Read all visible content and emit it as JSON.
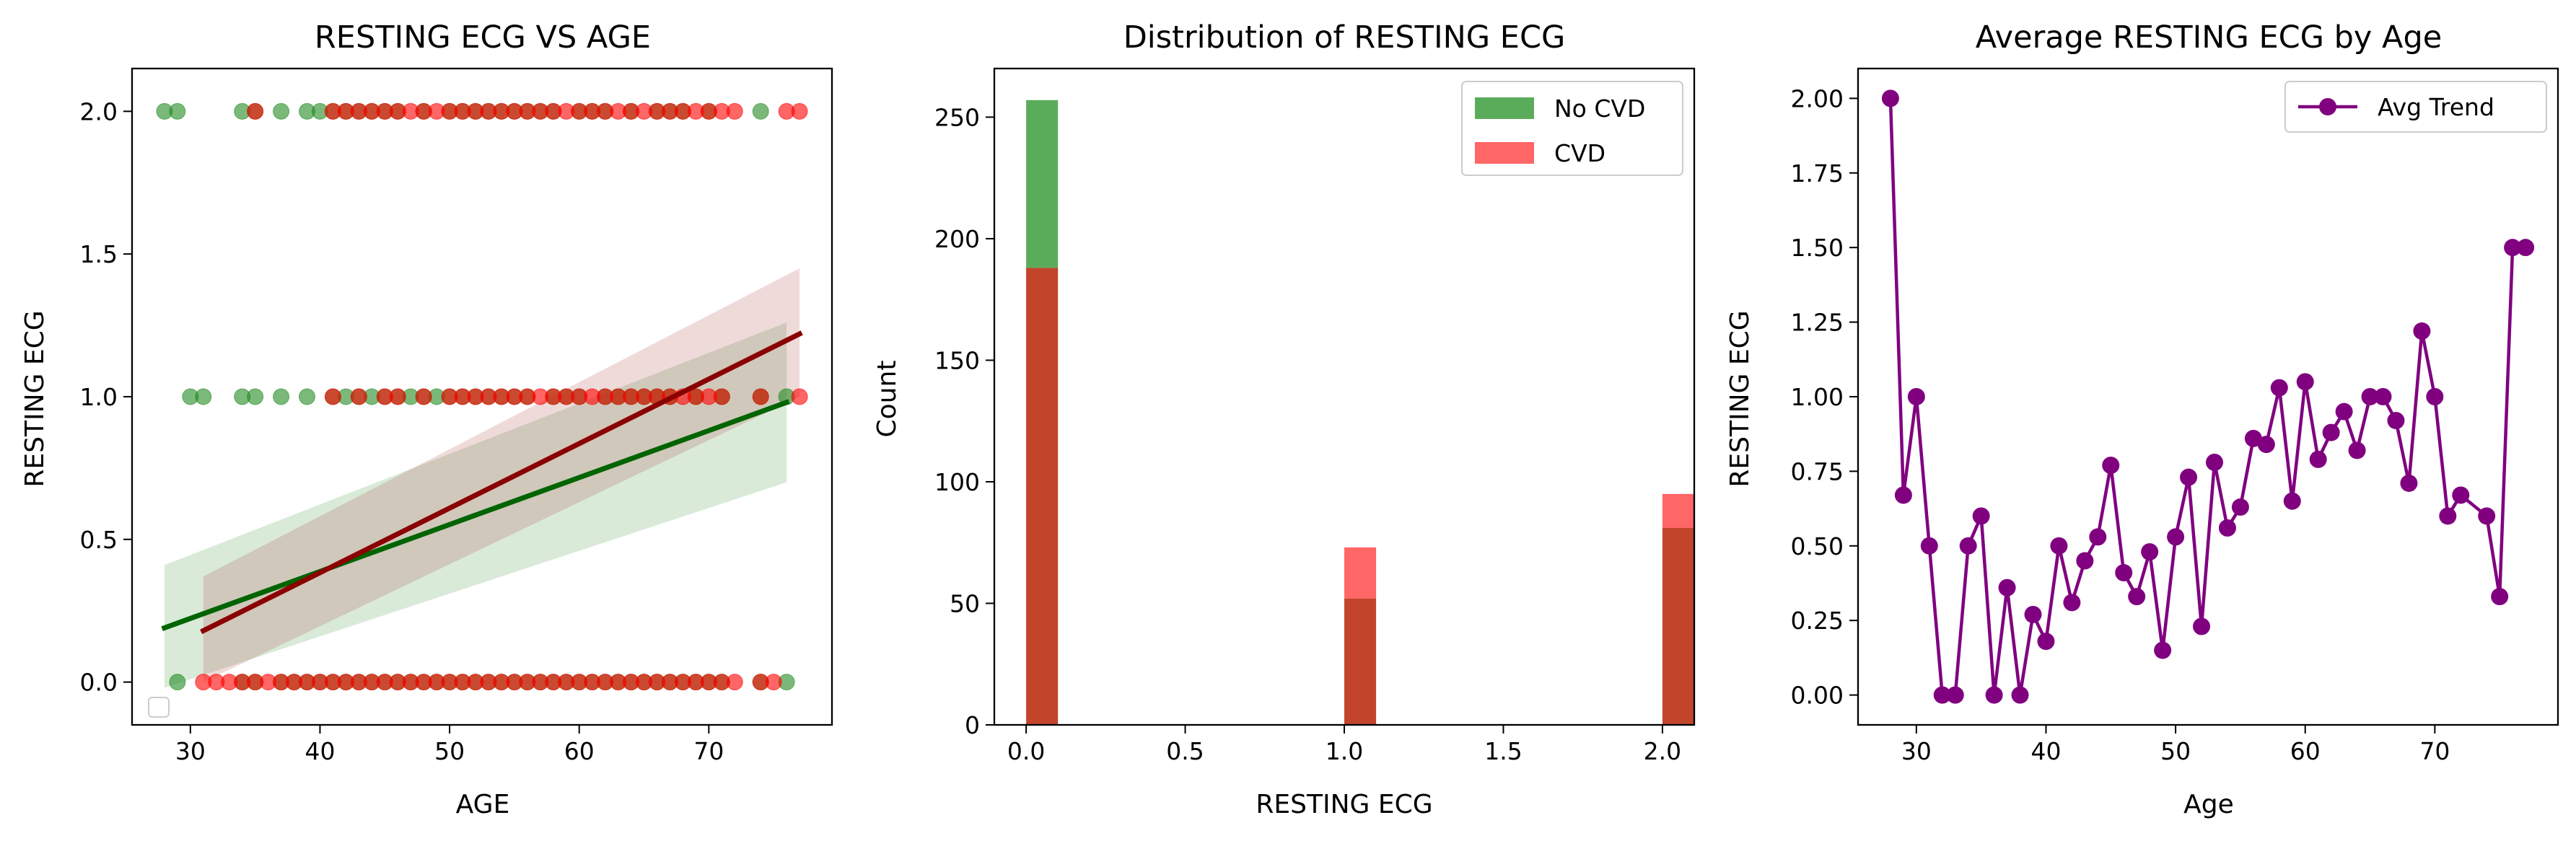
{
  "chart_data": [
    {
      "type": "scatter",
      "title": "RESTING ECG VS AGE",
      "xlabel": "AGE",
      "ylabel": "RESTING ECG",
      "xlim": [
        25.5,
        79.5
      ],
      "ylim": [
        -0.15,
        2.15
      ],
      "xticks": [
        30,
        40,
        50,
        60,
        70
      ],
      "yticks": [
        0.0,
        0.5,
        1.0,
        1.5,
        2.0
      ],
      "legend": "bottom-left (empty)",
      "colors": {
        "no_cvd": "#228b22",
        "cvd": "#ff0000",
        "no_cvd_fit": "#006400",
        "cvd_fit": "#8b0000"
      },
      "series": [
        {
          "group": "No CVD",
          "points": [
            [
              28,
              2
            ],
            [
              29,
              2
            ],
            [
              34,
              2
            ],
            [
              35,
              2
            ],
            [
              37,
              2
            ],
            [
              39,
              2
            ],
            [
              40,
              2
            ],
            [
              41,
              2
            ],
            [
              42,
              2
            ],
            [
              43,
              2
            ],
            [
              44,
              2
            ],
            [
              45,
              2
            ],
            [
              46,
              2
            ],
            [
              48,
              2
            ],
            [
              50,
              2
            ],
            [
              51,
              2
            ],
            [
              52,
              2
            ],
            [
              53,
              2
            ],
            [
              54,
              2
            ],
            [
              55,
              2
            ],
            [
              56,
              2
            ],
            [
              57,
              2
            ],
            [
              58,
              2
            ],
            [
              60,
              2
            ],
            [
              61,
              2
            ],
            [
              62,
              2
            ],
            [
              64,
              2
            ],
            [
              66,
              2
            ],
            [
              67,
              2
            ],
            [
              68,
              2
            ],
            [
              70,
              2
            ],
            [
              74,
              2
            ],
            [
              30,
              1
            ],
            [
              31,
              1
            ],
            [
              34,
              1
            ],
            [
              35,
              1
            ],
            [
              37,
              1
            ],
            [
              39,
              1
            ],
            [
              41,
              1
            ],
            [
              42,
              1
            ],
            [
              43,
              1
            ],
            [
              44,
              1
            ],
            [
              45,
              1
            ],
            [
              46,
              1
            ],
            [
              47,
              1
            ],
            [
              48,
              1
            ],
            [
              49,
              1
            ],
            [
              50,
              1
            ],
            [
              51,
              1
            ],
            [
              52,
              1
            ],
            [
              53,
              1
            ],
            [
              54,
              1
            ],
            [
              55,
              1
            ],
            [
              56,
              1
            ],
            [
              58,
              1
            ],
            [
              59,
              1
            ],
            [
              60,
              1
            ],
            [
              62,
              1
            ],
            [
              63,
              1
            ],
            [
              64,
              1
            ],
            [
              65,
              1
            ],
            [
              66,
              1
            ],
            [
              67,
              1
            ],
            [
              69,
              1
            ],
            [
              71,
              1
            ],
            [
              74,
              1
            ],
            [
              76,
              1
            ],
            [
              29,
              0
            ],
            [
              34,
              0
            ],
            [
              35,
              0
            ],
            [
              37,
              0
            ],
            [
              38,
              0
            ],
            [
              39,
              0
            ],
            [
              40,
              0
            ],
            [
              41,
              0
            ],
            [
              42,
              0
            ],
            [
              43,
              0
            ],
            [
              44,
              0
            ],
            [
              45,
              0
            ],
            [
              46,
              0
            ],
            [
              47,
              0
            ],
            [
              48,
              0
            ],
            [
              49,
              0
            ],
            [
              50,
              0
            ],
            [
              51,
              0
            ],
            [
              52,
              0
            ],
            [
              53,
              0
            ],
            [
              54,
              0
            ],
            [
              55,
              0
            ],
            [
              56,
              0
            ],
            [
              57,
              0
            ],
            [
              58,
              0
            ],
            [
              59,
              0
            ],
            [
              60,
              0
            ],
            [
              61,
              0
            ],
            [
              62,
              0
            ],
            [
              63,
              0
            ],
            [
              64,
              0
            ],
            [
              65,
              0
            ],
            [
              66,
              0
            ],
            [
              67,
              0
            ],
            [
              68,
              0
            ],
            [
              69,
              0
            ],
            [
              70,
              0
            ],
            [
              71,
              0
            ],
            [
              74,
              0
            ],
            [
              76,
              0
            ]
          ],
          "fit": {
            "x": [
              28,
              76
            ],
            "y": [
              0.19,
              0.98
            ],
            "ci_low": [
              -0.02,
              0.7
            ],
            "ci_high": [
              0.41,
              1.26
            ]
          }
        },
        {
          "group": "CVD",
          "points": [
            [
              35,
              2
            ],
            [
              41,
              2
            ],
            [
              42,
              2
            ],
            [
              43,
              2
            ],
            [
              44,
              2
            ],
            [
              45,
              2
            ],
            [
              46,
              2
            ],
            [
              47,
              2
            ],
            [
              48,
              2
            ],
            [
              49,
              2
            ],
            [
              50,
              2
            ],
            [
              51,
              2
            ],
            [
              52,
              2
            ],
            [
              53,
              2
            ],
            [
              54,
              2
            ],
            [
              55,
              2
            ],
            [
              56,
              2
            ],
            [
              57,
              2
            ],
            [
              58,
              2
            ],
            [
              59,
              2
            ],
            [
              60,
              2
            ],
            [
              61,
              2
            ],
            [
              62,
              2
            ],
            [
              63,
              2
            ],
            [
              64,
              2
            ],
            [
              65,
              2
            ],
            [
              66,
              2
            ],
            [
              67,
              2
            ],
            [
              68,
              2
            ],
            [
              69,
              2
            ],
            [
              70,
              2
            ],
            [
              71,
              2
            ],
            [
              72,
              2
            ],
            [
              76,
              2
            ],
            [
              77,
              2
            ],
            [
              41,
              1
            ],
            [
              43,
              1
            ],
            [
              45,
              1
            ],
            [
              46,
              1
            ],
            [
              48,
              1
            ],
            [
              50,
              1
            ],
            [
              51,
              1
            ],
            [
              52,
              1
            ],
            [
              53,
              1
            ],
            [
              54,
              1
            ],
            [
              55,
              1
            ],
            [
              56,
              1
            ],
            [
              57,
              1
            ],
            [
              58,
              1
            ],
            [
              59,
              1
            ],
            [
              60,
              1
            ],
            [
              61,
              1
            ],
            [
              62,
              1
            ],
            [
              63,
              1
            ],
            [
              64,
              1
            ],
            [
              65,
              1
            ],
            [
              66,
              1
            ],
            [
              67,
              1
            ],
            [
              68,
              1
            ],
            [
              69,
              1
            ],
            [
              70,
              1
            ],
            [
              71,
              1
            ],
            [
              74,
              1
            ],
            [
              77,
              1
            ],
            [
              31,
              0
            ],
            [
              32,
              0
            ],
            [
              33,
              0
            ],
            [
              34,
              0
            ],
            [
              35,
              0
            ],
            [
              36,
              0
            ],
            [
              37,
              0
            ],
            [
              38,
              0
            ],
            [
              39,
              0
            ],
            [
              40,
              0
            ],
            [
              41,
              0
            ],
            [
              42,
              0
            ],
            [
              43,
              0
            ],
            [
              44,
              0
            ],
            [
              45,
              0
            ],
            [
              46,
              0
            ],
            [
              47,
              0
            ],
            [
              48,
              0
            ],
            [
              49,
              0
            ],
            [
              50,
              0
            ],
            [
              51,
              0
            ],
            [
              52,
              0
            ],
            [
              53,
              0
            ],
            [
              54,
              0
            ],
            [
              55,
              0
            ],
            [
              56,
              0
            ],
            [
              57,
              0
            ],
            [
              58,
              0
            ],
            [
              59,
              0
            ],
            [
              60,
              0
            ],
            [
              61,
              0
            ],
            [
              62,
              0
            ],
            [
              63,
              0
            ],
            [
              64,
              0
            ],
            [
              65,
              0
            ],
            [
              66,
              0
            ],
            [
              67,
              0
            ],
            [
              68,
              0
            ],
            [
              69,
              0
            ],
            [
              70,
              0
            ],
            [
              71,
              0
            ],
            [
              72,
              0
            ],
            [
              74,
              0
            ],
            [
              75,
              0
            ]
          ],
          "fit": {
            "x": [
              31,
              77
            ],
            "y": [
              0.18,
              1.22
            ],
            "ci_low": [
              0.0,
              1.0
            ],
            "ci_high": [
              0.37,
              1.45
            ]
          }
        }
      ]
    },
    {
      "type": "bar",
      "title": "Distribution of RESTING ECG",
      "xlabel": "RESTING ECG",
      "ylabel": "Count",
      "xlim": [
        -0.1,
        2.1
      ],
      "ylim": [
        0,
        270
      ],
      "xticks": [
        "0.0",
        "0.5",
        "1.0",
        "1.5",
        "2.0"
      ],
      "yticks": [
        0,
        50,
        100,
        150,
        200,
        250
      ],
      "bins": [
        0,
        1,
        2
      ],
      "bar_width": 0.1,
      "legend": "top-right",
      "series": [
        {
          "name": "No CVD",
          "color": "#5aac5a",
          "values": [
            257,
            52,
            81
          ]
        },
        {
          "name": "CVD",
          "color": "#ff6666",
          "values": [
            188,
            73,
            95
          ]
        }
      ],
      "overlap_color": "#c2452b"
    },
    {
      "type": "line",
      "title": "Average RESTING ECG by Age",
      "xlabel": "Age",
      "ylabel": "RESTING ECG",
      "xlim": [
        25.5,
        79.5
      ],
      "ylim": [
        -0.1,
        2.1
      ],
      "xticks": [
        30,
        40,
        50,
        60,
        70
      ],
      "yticks": [
        "0.00",
        "0.25",
        "0.50",
        "0.75",
        "1.00",
        "1.25",
        "1.50",
        "1.75",
        "2.00"
      ],
      "legend": "top-right",
      "series": [
        {
          "name": "Avg Trend",
          "color": "#800080",
          "x": [
            28,
            29,
            30,
            31,
            32,
            33,
            34,
            35,
            36,
            37,
            38,
            39,
            40,
            41,
            42,
            43,
            44,
            45,
            46,
            47,
            48,
            49,
            50,
            51,
            52,
            53,
            54,
            55,
            56,
            57,
            58,
            59,
            60,
            61,
            62,
            63,
            64,
            65,
            66,
            67,
            68,
            69,
            70,
            71,
            72,
            74,
            75,
            76,
            77
          ],
          "y": [
            2.0,
            0.67,
            1.0,
            0.5,
            0.0,
            0.0,
            0.5,
            0.6,
            0.0,
            0.36,
            0.0,
            0.27,
            0.18,
            0.5,
            0.31,
            0.45,
            0.53,
            0.77,
            0.41,
            0.33,
            0.48,
            0.15,
            0.53,
            0.73,
            0.23,
            0.78,
            0.56,
            0.63,
            0.86,
            0.84,
            1.03,
            0.65,
            1.05,
            0.79,
            0.88,
            0.95,
            0.82,
            1.0,
            1.0,
            0.92,
            0.71,
            1.22,
            1.0,
            0.6,
            0.67,
            0.6,
            0.33,
            1.5,
            1.5
          ]
        }
      ]
    }
  ]
}
